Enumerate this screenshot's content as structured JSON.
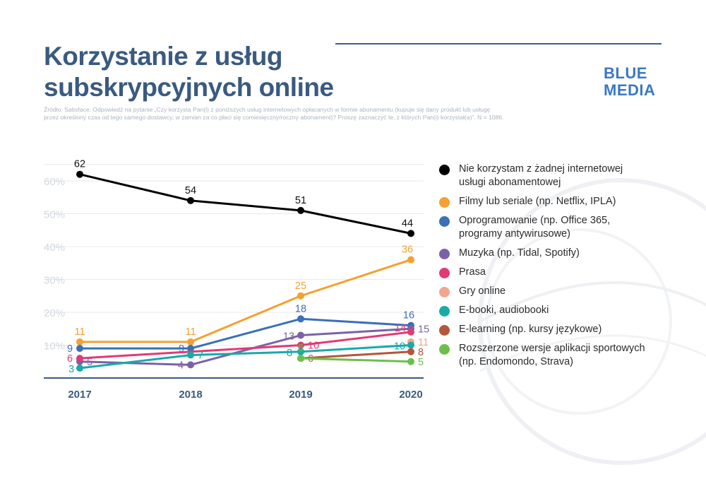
{
  "title_lines": [
    "Korzystanie z usług",
    "subskrypcyjnych online"
  ],
  "brand_lines": [
    "BLUE",
    "MEDIA"
  ],
  "source_lines": [
    "Źródło: Satisface. Odpowiedź na pytanie „Czy korzysta Pan(i) z poniższych usług internetowych opłacanych w formie abonamentu (kupuje się dany produkt lub usługę",
    "przez określony czas od tego samego dostawcy, w zamian za co płaci się comiesięczny/roczny abonament)? Proszę zaznaczyć te, z których Pan(i) korzystał(a)”. N = 1086."
  ],
  "chart_data": {
    "type": "line",
    "categories": [
      "2017",
      "2018",
      "2019",
      "2020"
    ],
    "y_ticks": [
      "10%",
      "20%",
      "30%",
      "40%",
      "50%",
      "60%"
    ],
    "ylim": [
      0,
      65
    ],
    "grid": true,
    "legend_position": "right",
    "series": [
      {
        "name": "Nie korzystam z żadnej internetowej usługi abonamentowej",
        "color": "#000000",
        "values": [
          62,
          54,
          51,
          44
        ]
      },
      {
        "name": "Filmy lub seriale (np. Netflix, IPLA)",
        "color": "#f5a030",
        "values": [
          11,
          11,
          25,
          36
        ]
      },
      {
        "name": "Oprogramowanie (np. Office 365, programy antywirusowe)",
        "color": "#3b6fb6",
        "values": [
          9,
          9,
          18,
          16
        ]
      },
      {
        "name": "Muzyka (np. Tidal, Spotify)",
        "color": "#7b62a6",
        "values": [
          5,
          4,
          13,
          15
        ]
      },
      {
        "name": "Prasa",
        "color": "#e23a74",
        "values": [
          6,
          null,
          10,
          14
        ]
      },
      {
        "name": "Gry online",
        "color": "#f2a58e",
        "values": [
          null,
          null,
          null,
          11
        ]
      },
      {
        "name": "E-booki, audiobooki",
        "color": "#1aa9a9",
        "values": [
          3,
          7,
          8,
          10
        ]
      },
      {
        "name": "E-learning (np. kursy językowe)",
        "color": "#b5553c",
        "values": [
          null,
          null,
          6,
          8
        ]
      },
      {
        "name": "Rozszerzone wersje aplikacji sportowych (np. Endomondo, Strava)",
        "color": "#6cc04a",
        "values": [
          null,
          null,
          6,
          5
        ]
      }
    ]
  },
  "legend": [
    {
      "lines": [
        "Nie korzystam z żadnej internetowej",
        "usługi abonamentowej"
      ],
      "color": "#000000"
    },
    {
      "lines": [
        "Filmy lub seriale (np. Netflix, IPLA)"
      ],
      "color": "#f5a030"
    },
    {
      "lines": [
        "Oprogramowanie (np. Office 365,",
        "programy antywirusowe)"
      ],
      "color": "#3b6fb6"
    },
    {
      "lines": [
        "Muzyka (np. Tidal, Spotify)"
      ],
      "color": "#7b62a6"
    },
    {
      "lines": [
        "Prasa"
      ],
      "color": "#e23a74"
    },
    {
      "lines": [
        "Gry online"
      ],
      "color": "#f2a58e"
    },
    {
      "lines": [
        "E-booki, audiobooki"
      ],
      "color": "#1aa9a9"
    },
    {
      "lines": [
        "E-learning (np. kursy językowe)"
      ],
      "color": "#b5553c"
    },
    {
      "lines": [
        "Rozszerzone wersje aplikacji sportowych",
        "(np. Endomondo, Strava)"
      ],
      "color": "#6cc04a"
    }
  ]
}
